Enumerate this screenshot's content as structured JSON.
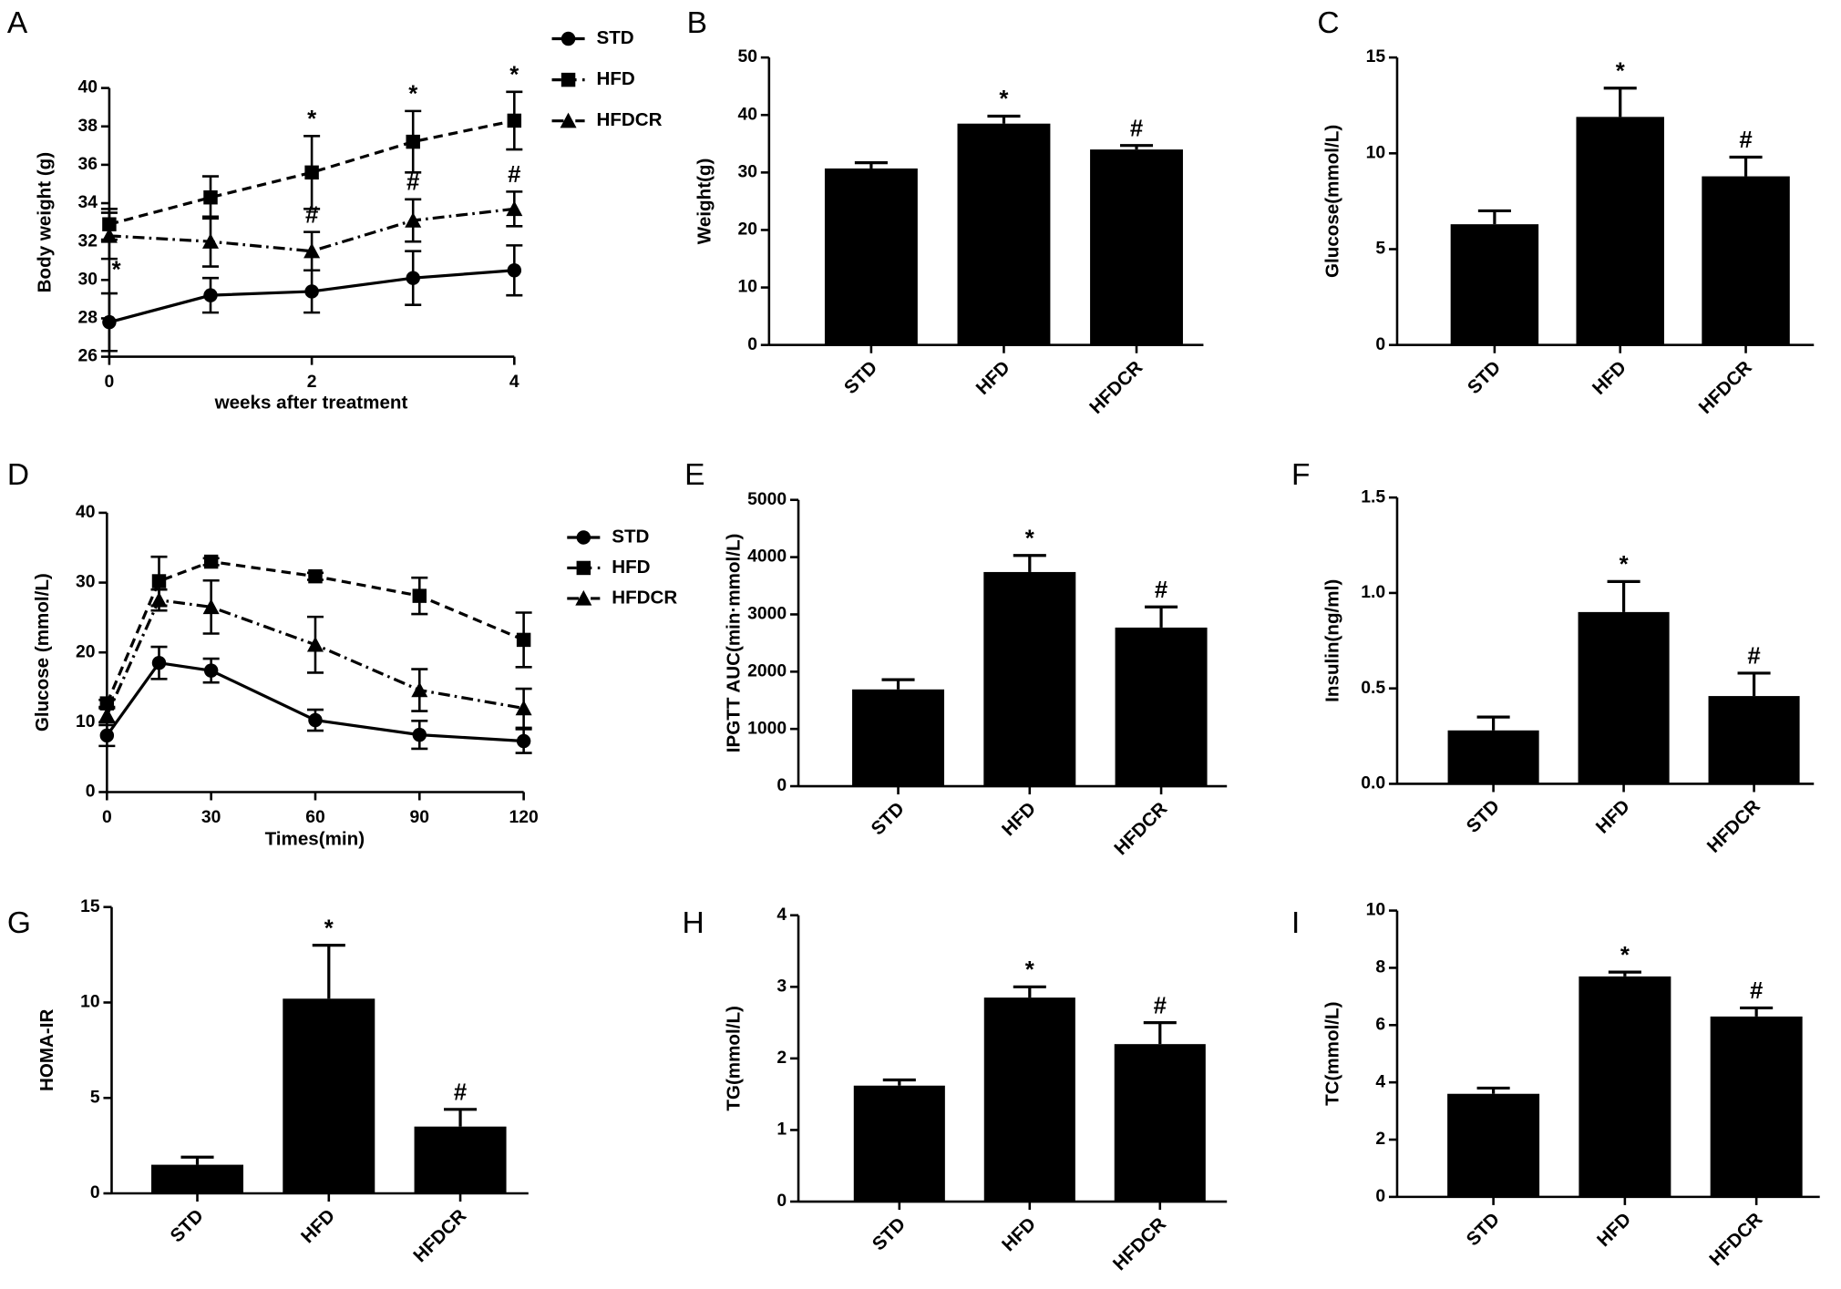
{
  "chart_data": [
    {
      "type": "line",
      "panel": "A",
      "xlabel": "weeks after treatment",
      "ylabel": "Body weight (g)",
      "x": [
        0,
        1,
        2,
        3,
        4
      ],
      "xlim": [
        0,
        4
      ],
      "xticks": [
        0,
        2,
        4
      ],
      "ylim": [
        26,
        40
      ],
      "yticks": [
        26,
        28,
        30,
        32,
        34,
        36,
        38,
        40
      ],
      "series": [
        {
          "name": "STD",
          "color": "#000000",
          "marker": "circle",
          "line_style": "solid",
          "values": [
            27.8,
            29.2,
            29.4,
            30.1,
            30.5
          ],
          "errors": [
            1.5,
            0.9,
            1.1,
            1.4,
            1.3
          ],
          "sig": [
            null,
            null,
            null,
            null,
            null
          ]
        },
        {
          "name": "HFD",
          "color": "#000000",
          "marker": "square",
          "line_style": "dashed",
          "values": [
            32.9,
            34.3,
            35.6,
            37.2,
            38.3
          ],
          "errors": [
            0.8,
            1.1,
            1.9,
            1.6,
            1.5
          ],
          "sig": [
            null,
            null,
            "*",
            "*",
            "*"
          ]
        },
        {
          "name": "HFDCR",
          "color": "#000000",
          "marker": "triangle",
          "line_style": "dashdot",
          "values": [
            32.3,
            32.0,
            31.5,
            33.1,
            33.7
          ],
          "errors": [
            1.2,
            1.3,
            1.0,
            1.1,
            0.9
          ],
          "sig": [
            "*",
            null,
            "#",
            "#",
            "#"
          ]
        }
      ]
    },
    {
      "type": "bar",
      "panel": "B",
      "ylabel": "Weight(g)",
      "categories": [
        "STD",
        "HFD",
        "HFDCR"
      ],
      "values": [
        30.7,
        38.5,
        34.0
      ],
      "errors": [
        1.0,
        1.3,
        0.7
      ],
      "sig": [
        null,
        "*",
        "#"
      ],
      "color": "#000000",
      "ylim": [
        0,
        50
      ],
      "yticks": [
        0,
        10,
        20,
        30,
        40,
        50
      ]
    },
    {
      "type": "bar",
      "panel": "C",
      "ylabel": "Glucose(mmol/L)",
      "categories": [
        "STD",
        "HFD",
        "HFDCR"
      ],
      "values": [
        6.3,
        11.9,
        8.8
      ],
      "errors": [
        0.7,
        1.5,
        1.0
      ],
      "sig": [
        null,
        "*",
        "#"
      ],
      "color": "#000000",
      "ylim": [
        0,
        15
      ],
      "yticks": [
        0,
        5,
        10,
        15
      ]
    },
    {
      "type": "line",
      "panel": "D",
      "xlabel": "Times(min)",
      "ylabel": "Glucose (mmol/L)",
      "x": [
        0,
        15,
        30,
        60,
        90,
        120
      ],
      "xlim": [
        0,
        120
      ],
      "xticks": [
        0,
        30,
        60,
        90,
        120
      ],
      "ylim": [
        0,
        40
      ],
      "yticks": [
        0,
        10,
        20,
        30,
        40
      ],
      "series": [
        {
          "name": "STD",
          "color": "#000000",
          "marker": "circle",
          "line_style": "solid",
          "values": [
            8.1,
            18.5,
            17.4,
            10.3,
            8.2,
            7.3
          ],
          "errors": [
            1.5,
            2.3,
            1.7,
            1.5,
            2.0,
            1.7
          ],
          "sig": [
            null,
            null,
            null,
            null,
            null,
            null
          ]
        },
        {
          "name": "HFD",
          "color": "#000000",
          "marker": "square",
          "line_style": "dashed",
          "values": [
            12.7,
            30.2,
            33.0,
            30.9,
            28.1,
            21.8
          ],
          "errors": [
            0.5,
            3.5,
            0.5,
            0.5,
            2.6,
            3.9
          ],
          "sig": [
            null,
            null,
            null,
            null,
            null,
            null
          ]
        },
        {
          "name": "HFDCR",
          "color": "#000000",
          "marker": "triangle",
          "line_style": "dashdot",
          "values": [
            11.0,
            27.5,
            26.5,
            21.1,
            14.6,
            12.0
          ],
          "errors": [
            1.0,
            1.5,
            3.8,
            4.0,
            3.0,
            2.8
          ],
          "sig": [
            null,
            null,
            null,
            null,
            null,
            null
          ]
        }
      ]
    },
    {
      "type": "bar",
      "panel": "E",
      "ylabel": "IPGTT AUC(min·mmol/L)",
      "categories": [
        "STD",
        "HFD",
        "HFDCR"
      ],
      "values": [
        1690,
        3740,
        2770
      ],
      "errors": [
        170,
        290,
        360
      ],
      "sig": [
        null,
        "*",
        "#"
      ],
      "color": "#000000",
      "ylim": [
        0,
        5000
      ],
      "yticks": [
        0,
        1000,
        2000,
        3000,
        4000,
        5000
      ]
    },
    {
      "type": "bar",
      "panel": "F",
      "ylabel": "Insulin(ng/ml)",
      "categories": [
        "STD",
        "HFD",
        "HFDCR"
      ],
      "values": [
        0.28,
        0.9,
        0.46
      ],
      "errors": [
        0.07,
        0.16,
        0.12
      ],
      "sig": [
        null,
        "*",
        "#"
      ],
      "color": "#000000",
      "ylim": [
        0,
        1.5
      ],
      "yticks": [
        {
          "value": 0,
          "label": "0.0"
        },
        0.5,
        {
          "value": 1,
          "label": "1.0"
        },
        1.5
      ]
    },
    {
      "type": "bar",
      "panel": "G",
      "ylabel": "HOMA-IR",
      "categories": [
        "STD",
        "HFD",
        "HFDCR"
      ],
      "values": [
        1.5,
        10.2,
        3.5
      ],
      "errors": [
        0.4,
        2.8,
        0.9
      ],
      "sig": [
        null,
        "*",
        "#"
      ],
      "color": "#000000",
      "ylim": [
        0,
        15
      ],
      "yticks": [
        0,
        5,
        10,
        15
      ]
    },
    {
      "type": "bar",
      "panel": "H",
      "ylabel": "TG(mmol/L)",
      "categories": [
        "STD",
        "HFD",
        "HFDCR"
      ],
      "values": [
        1.62,
        2.85,
        2.2
      ],
      "errors": [
        0.08,
        0.15,
        0.3
      ],
      "sig": [
        null,
        "*",
        "#"
      ],
      "color": "#000000",
      "ylim": [
        0,
        4
      ],
      "yticks": [
        0,
        1,
        2,
        3,
        4
      ]
    },
    {
      "type": "bar",
      "panel": "I",
      "ylabel": "TC(mmol/L)",
      "categories": [
        "STD",
        "HFD",
        "HFDCR"
      ],
      "values": [
        3.6,
        7.7,
        6.3
      ],
      "errors": [
        0.2,
        0.15,
        0.3
      ],
      "sig": [
        null,
        "*",
        "#"
      ],
      "color": "#000000",
      "ylim": [
        0,
        10
      ],
      "yticks": [
        0,
        2,
        4,
        6,
        8,
        10
      ]
    }
  ]
}
